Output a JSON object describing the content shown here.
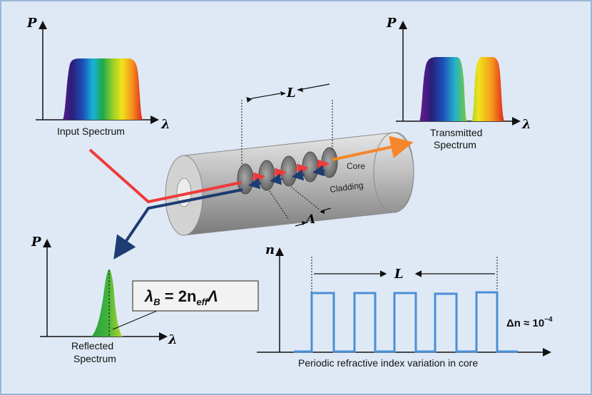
{
  "input_plot": {
    "y_axis": "P",
    "x_axis": "λ",
    "caption": "Input Spectrum"
  },
  "transmitted_plot": {
    "y_axis": "P",
    "x_axis": "λ",
    "caption_line1": "Transmitted",
    "caption_line2": "Spectrum"
  },
  "reflected_plot": {
    "y_axis": "P",
    "x_axis": "λ",
    "caption_line1": "Reflected",
    "caption_line2": "Spectrum"
  },
  "fiber": {
    "grating_length_label": "L",
    "period_label": "Λ",
    "core_label": "Core",
    "cladding_label": "Cladding"
  },
  "bragg_equation": {
    "lhs_symbol": "λ",
    "lhs_subscript": "B",
    "equals": " = 2n",
    "n_subscript": "eff",
    "rhs_symbol": "Λ"
  },
  "index_profile": {
    "y_axis": "n",
    "length_label": "L",
    "delta_symbol": "Δn ≈ 10",
    "delta_exponent": "−4",
    "caption": "Periodic refractive index variation in core",
    "pulse_count": 5
  },
  "colors": {
    "background": "#dfe9f5",
    "border": "#9ab6d8",
    "input_arrow": "#ee3b3b",
    "reflected_arrow": "#1d3c73",
    "transmitted_arrow": "#f5862a",
    "index_line": "#4a8fd6",
    "fiber_body": "#b9b9b9"
  }
}
